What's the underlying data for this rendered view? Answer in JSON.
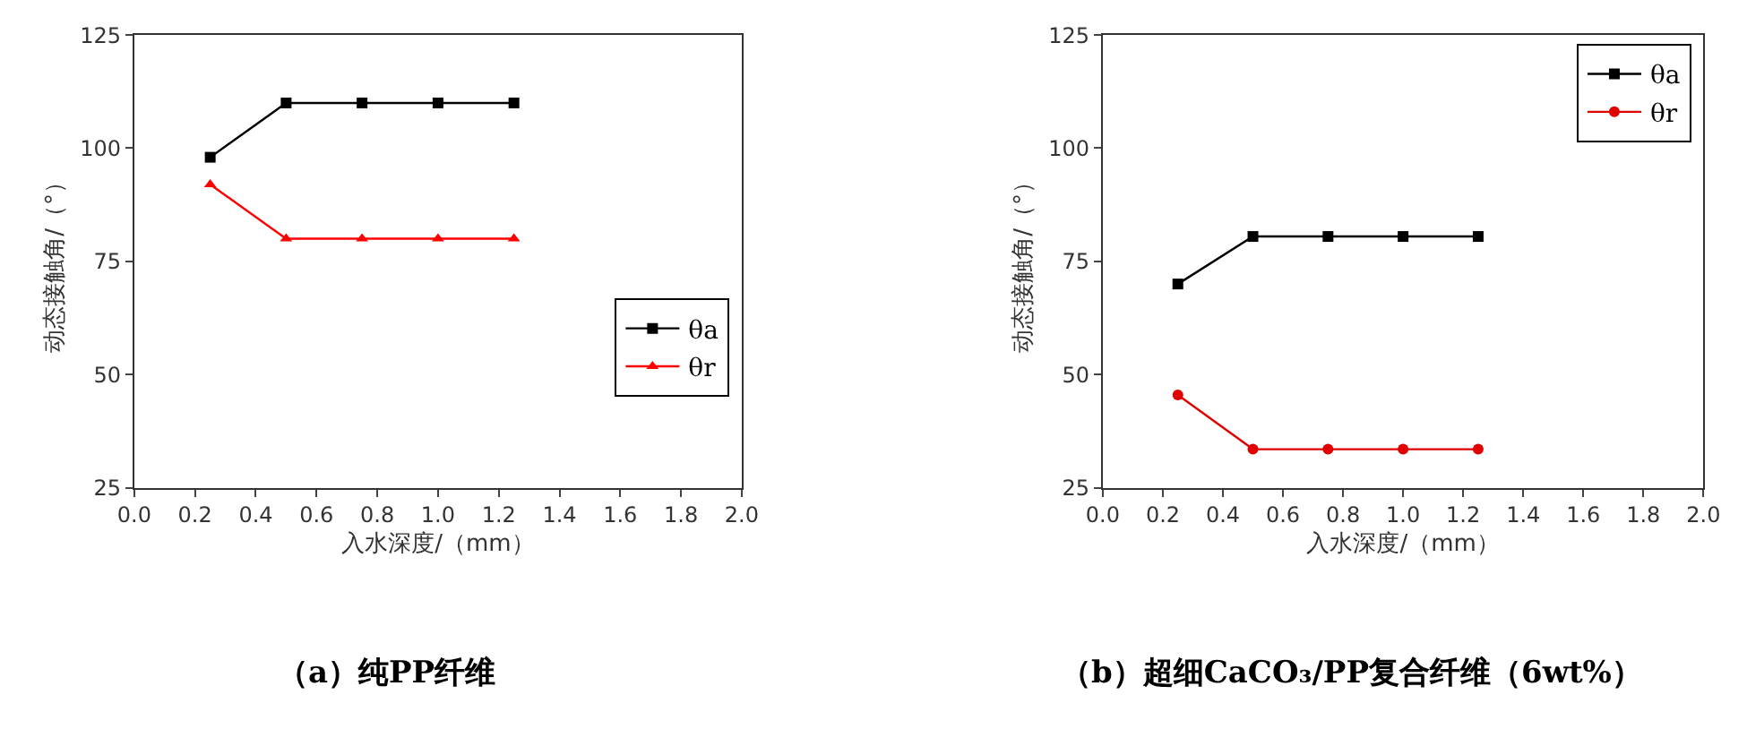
{
  "chart_data": [
    {
      "type": "line",
      "title": "（a）纯PP纤维",
      "xlabel": "入水深度/（mm）",
      "ylabel": "动态接触角/（°）",
      "x": [
        0.25,
        0.5,
        0.75,
        1.0,
        1.25
      ],
      "series": [
        {
          "name": "θa",
          "color": "#000000",
          "marker": "square",
          "values": [
            98,
            110,
            110,
            110,
            110
          ]
        },
        {
          "name": "θr",
          "color": "#ff0000",
          "marker": "triangle",
          "values": [
            92,
            80,
            80,
            80,
            80
          ]
        }
      ],
      "xlim": [
        0,
        2.0
      ],
      "xticks": [
        {
          "value": 0,
          "label": "0.0"
        },
        0.2,
        0.4,
        0.6,
        0.8,
        {
          "value": 1,
          "label": "1.0"
        },
        1.2,
        1.4,
        1.6,
        1.8,
        {
          "value": 2,
          "label": "2.0"
        }
      ],
      "ylim": [
        25,
        125
      ],
      "yticks": [
        25,
        50,
        75,
        100,
        125
      ],
      "grid": false,
      "legend": "bottom right",
      "line_style": "solid"
    },
    {
      "type": "line",
      "title": "（b）超细CaCO₃/PP复合纤维（6wt%）",
      "xlabel": "入水深度/（mm）",
      "ylabel": "动态接触角/（°）",
      "x": [
        0.25,
        0.5,
        0.75,
        1.0,
        1.25
      ],
      "series": [
        {
          "name": "θa",
          "color": "#000000",
          "marker": "square",
          "values": [
            70,
            80.5,
            80.5,
            80.5,
            80.5
          ]
        },
        {
          "name": "θr",
          "color": "#e00000",
          "marker": "circle",
          "values": [
            45.5,
            33.5,
            33.5,
            33.5,
            33.5
          ]
        }
      ],
      "xlim": [
        0,
        2.0
      ],
      "xticks": [
        {
          "value": 0,
          "label": "0.0"
        },
        0.2,
        0.4,
        0.6,
        0.8,
        {
          "value": 1,
          "label": "1.0"
        },
        1.2,
        1.4,
        1.6,
        1.8,
        {
          "value": 2,
          "label": "2.0"
        }
      ],
      "ylim": [
        25,
        125
      ],
      "yticks": [
        25,
        50,
        75,
        100,
        125
      ],
      "grid": false,
      "legend": "top right",
      "line_style": "solid"
    }
  ]
}
